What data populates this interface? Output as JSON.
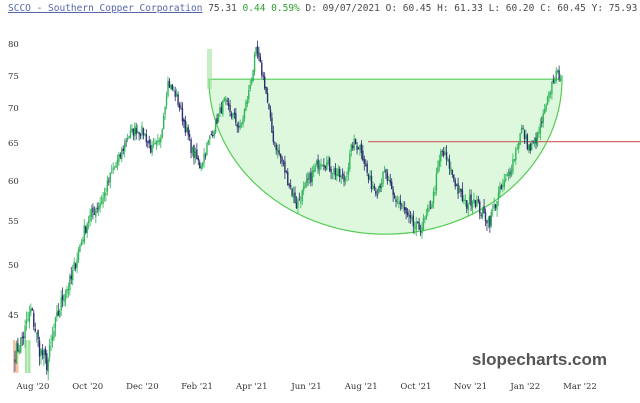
{
  "header": {
    "symbol_name": "SCCO - Southern Copper Corporation",
    "last": "75.31",
    "change": "0.44",
    "change_pct": "0.59%",
    "date": "D: 09/07/2021",
    "open": "O: 60.45",
    "high": "H: 61.33",
    "low": "L: 60.20",
    "close": "C: 60.45",
    "y_value": "Y: 75.93"
  },
  "watermark": "slopecharts.com",
  "colors": {
    "up_candle": "#2fb55a",
    "down_candle": "#2b2e6e",
    "cup_fill": "#d9f7d9",
    "cup_stroke": "#55cc55",
    "resistance": "#d46a6a",
    "volume_up": "#8fe08f",
    "volume_down": "#f2b48a"
  },
  "chart_data": {
    "type": "candlestick",
    "title": "",
    "xlabel": "",
    "ylabel": "",
    "x_ticks": [
      "Aug '20",
      "Oct '20",
      "Dec '20",
      "Feb '21",
      "Apr '21",
      "Jun '21",
      "Aug '21",
      "Oct '21",
      "Nov '21",
      "Jan '22",
      "Mar '22"
    ],
    "y_ticks": [
      80,
      75,
      70,
      65,
      60,
      55,
      50,
      45
    ],
    "ylim": [
      38,
      81
    ],
    "series": [
      {
        "name": "",
        "values": [
          41.5,
          43,
          45.5,
          42,
          40.5,
          44,
          47,
          48.5,
          52,
          55,
          56.5,
          58,
          61,
          63,
          66,
          67,
          66.5,
          64,
          65,
          74,
          72,
          68,
          64,
          62,
          65,
          68,
          71,
          69,
          67,
          72,
          79,
          74,
          66,
          63,
          60,
          57,
          59,
          61,
          63,
          62,
          61,
          60,
          65,
          64.5,
          60,
          59,
          61,
          58,
          57,
          55,
          54,
          55,
          58,
          64,
          62,
          59,
          57,
          58,
          56,
          55,
          58,
          60,
          63,
          67,
          64,
          66,
          70,
          75,
          75.3
        ]
      }
    ],
    "annotations": [
      {
        "type": "cup",
        "left_price": 74.5,
        "right_price": 74.5,
        "bottom_price": 53.5
      },
      {
        "type": "resistance",
        "price": 65.2
      }
    ]
  }
}
